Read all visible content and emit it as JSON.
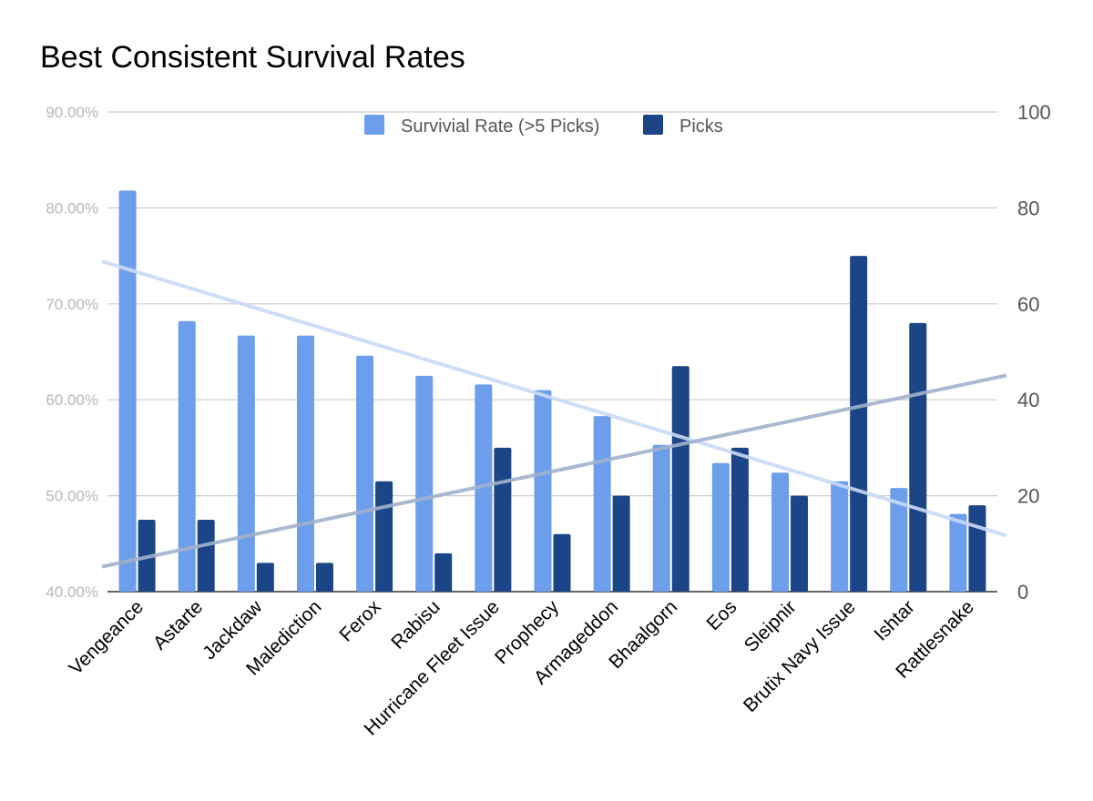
{
  "chart_data": {
    "type": "bar",
    "title": "Best Consistent Survival Rates",
    "categories": [
      "Vengeance",
      "Astarte",
      "Jackdaw",
      "Malediction",
      "Ferox",
      "Rabisu",
      "Hurricane Fleet Issue",
      "Prophecy",
      "Armageddon",
      "Bhaalgorn",
      "Eos",
      "Sleipnir",
      "Brutix Navy Issue",
      "Ishtar",
      "Rattlesnake"
    ],
    "series": [
      {
        "name": "Survivial Rate (>5 Picks)",
        "axis": "left",
        "color": "#6d9eeb",
        "values": [
          81.8,
          68.2,
          66.7,
          66.7,
          64.6,
          62.5,
          61.6,
          61.0,
          58.3,
          55.3,
          53.4,
          52.4,
          51.5,
          50.8,
          48.1
        ]
      },
      {
        "name": "Picks",
        "axis": "right",
        "color": "#1c4587",
        "values": [
          15,
          15,
          6,
          6,
          23,
          8,
          30,
          12,
          20,
          47,
          30,
          20,
          70,
          56,
          18
        ]
      }
    ],
    "trendlines": [
      {
        "series": "Survivial Rate (>5 Picks)",
        "color": "#c9daf8"
      },
      {
        "series": "Picks",
        "color": "#a0b2cc"
      }
    ],
    "y_left": {
      "min": 40,
      "max": 90,
      "ticks": [
        "40.00%",
        "50.00%",
        "60.00%",
        "70.00%",
        "80.00%",
        "90.00%"
      ]
    },
    "y_right": {
      "min": 0,
      "max": 100,
      "ticks": [
        "0",
        "20",
        "40",
        "60",
        "80",
        "100"
      ]
    },
    "grid": true,
    "legend_position": "top"
  }
}
